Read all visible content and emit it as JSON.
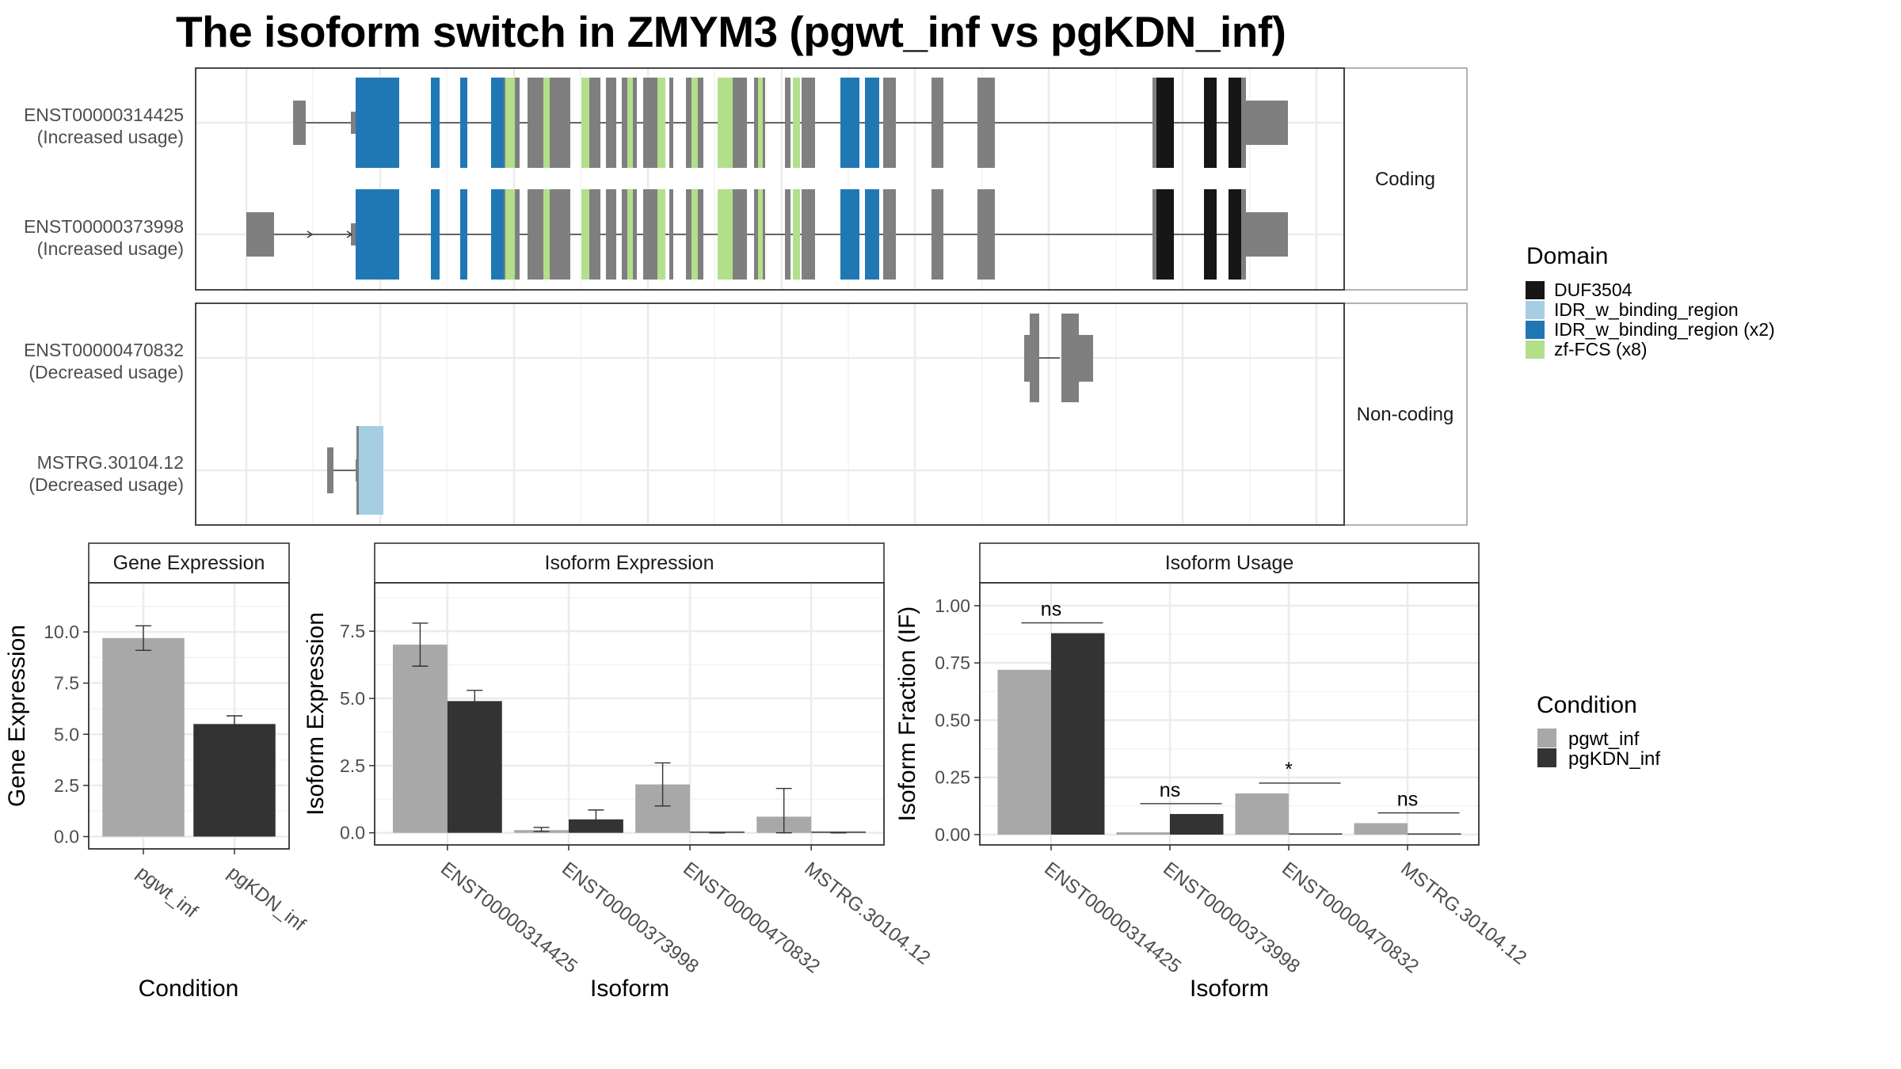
{
  "title": "The isoform switch in ZMYM3 (pgwt_inf vs pgKDN_inf)",
  "colors": {
    "DUF3504": "#161616",
    "IDR_light": "#a6cee3",
    "IDR_dark": "#1f78b4",
    "zf_FCS": "#b2df8a",
    "exon": "#7f7f7f",
    "pgwt_inf": "#a8a8a8",
    "pgKDN_inf": "#333333",
    "panel_grid": "#ebebeb",
    "strip_border": "#999999"
  },
  "chart_data": [
    {
      "type": "gene-structure",
      "panels": [
        {
          "strip": "Coding",
          "transcripts": [
            {
              "id": "ENST00000314425",
              "note": "(Increased usage)"
            },
            {
              "id": "ENST00000373998",
              "note": "(Increased usage)"
            }
          ]
        },
        {
          "strip": "Non-coding",
          "transcripts": [
            {
              "id": "ENST00000470832",
              "note": "(Decreased usage)"
            },
            {
              "id": "MSTRG.30104.12",
              "note": "(Decreased usage)"
            }
          ]
        }
      ],
      "legend": {
        "title": "Domain",
        "items": [
          {
            "label": "DUF3504",
            "color": "#161616"
          },
          {
            "label": "IDR_w_binding_region",
            "color": "#a6cee3"
          },
          {
            "label": "IDR_w_binding_region (x2)",
            "color": "#1f78b4"
          },
          {
            "label": "zf-FCS (x8)",
            "color": "#b2df8a"
          }
        ]
      }
    },
    {
      "type": "bar",
      "strip": "Gene Expression",
      "xlabel": "Condition",
      "ylabel": "Gene Expression",
      "categories": [
        "pgwt_inf",
        "pgKDN_inf"
      ],
      "values": [
        9.7,
        5.5
      ],
      "errors": [
        [
          9.1,
          10.3
        ],
        [
          5.2,
          5.9
        ]
      ],
      "ylim": [
        -0.6,
        12.4
      ],
      "yticks": [
        "0.0",
        "2.5",
        "5.0",
        "7.5",
        "10.0"
      ]
    },
    {
      "type": "bar",
      "strip": "Isoform Expression",
      "xlabel": "Isoform",
      "ylabel": "Isoform Expression",
      "categories": [
        "ENST00000314425",
        "ENST00000373998",
        "ENST00000470832",
        "MSTRG.30104.12"
      ],
      "series": [
        {
          "name": "pgwt_inf",
          "values": [
            7.0,
            0.1,
            1.8,
            0.6
          ],
          "errors": [
            [
              6.2,
              7.8
            ],
            [
              0.05,
              0.2
            ],
            [
              1.0,
              2.6
            ],
            [
              0.0,
              1.65
            ]
          ]
        },
        {
          "name": "pgKDN_inf",
          "values": [
            4.9,
            0.5,
            0.0,
            0.0
          ],
          "errors": [
            [
              4.5,
              5.3
            ],
            [
              0.15,
              0.85
            ],
            [
              0.0,
              0.0
            ],
            [
              0.0,
              0.0
            ]
          ]
        }
      ],
      "ylim": [
        -0.45,
        9.3
      ],
      "yticks": [
        "0.0",
        "2.5",
        "5.0",
        "7.5"
      ]
    },
    {
      "type": "bar",
      "strip": "Isoform Usage",
      "xlabel": "Isoform",
      "ylabel": "Isoform Fraction (IF)",
      "categories": [
        "ENST00000314425",
        "ENST00000373998",
        "ENST00000470832",
        "MSTRG.30104.12"
      ],
      "series": [
        {
          "name": "pgwt_inf",
          "values": [
            0.72,
            0.01,
            0.18,
            0.05
          ]
        },
        {
          "name": "pgKDN_inf",
          "values": [
            0.88,
            0.09,
            0.0,
            0.0
          ]
        }
      ],
      "significance": [
        "ns",
        "ns",
        "*",
        "ns"
      ],
      "ylim": [
        -0.045,
        1.1
      ],
      "yticks": [
        "0.00",
        "0.25",
        "0.50",
        "0.75",
        "1.00"
      ],
      "legend": {
        "title": "Condition",
        "items": [
          "pgwt_inf",
          "pgKDN_inf"
        ]
      }
    }
  ]
}
